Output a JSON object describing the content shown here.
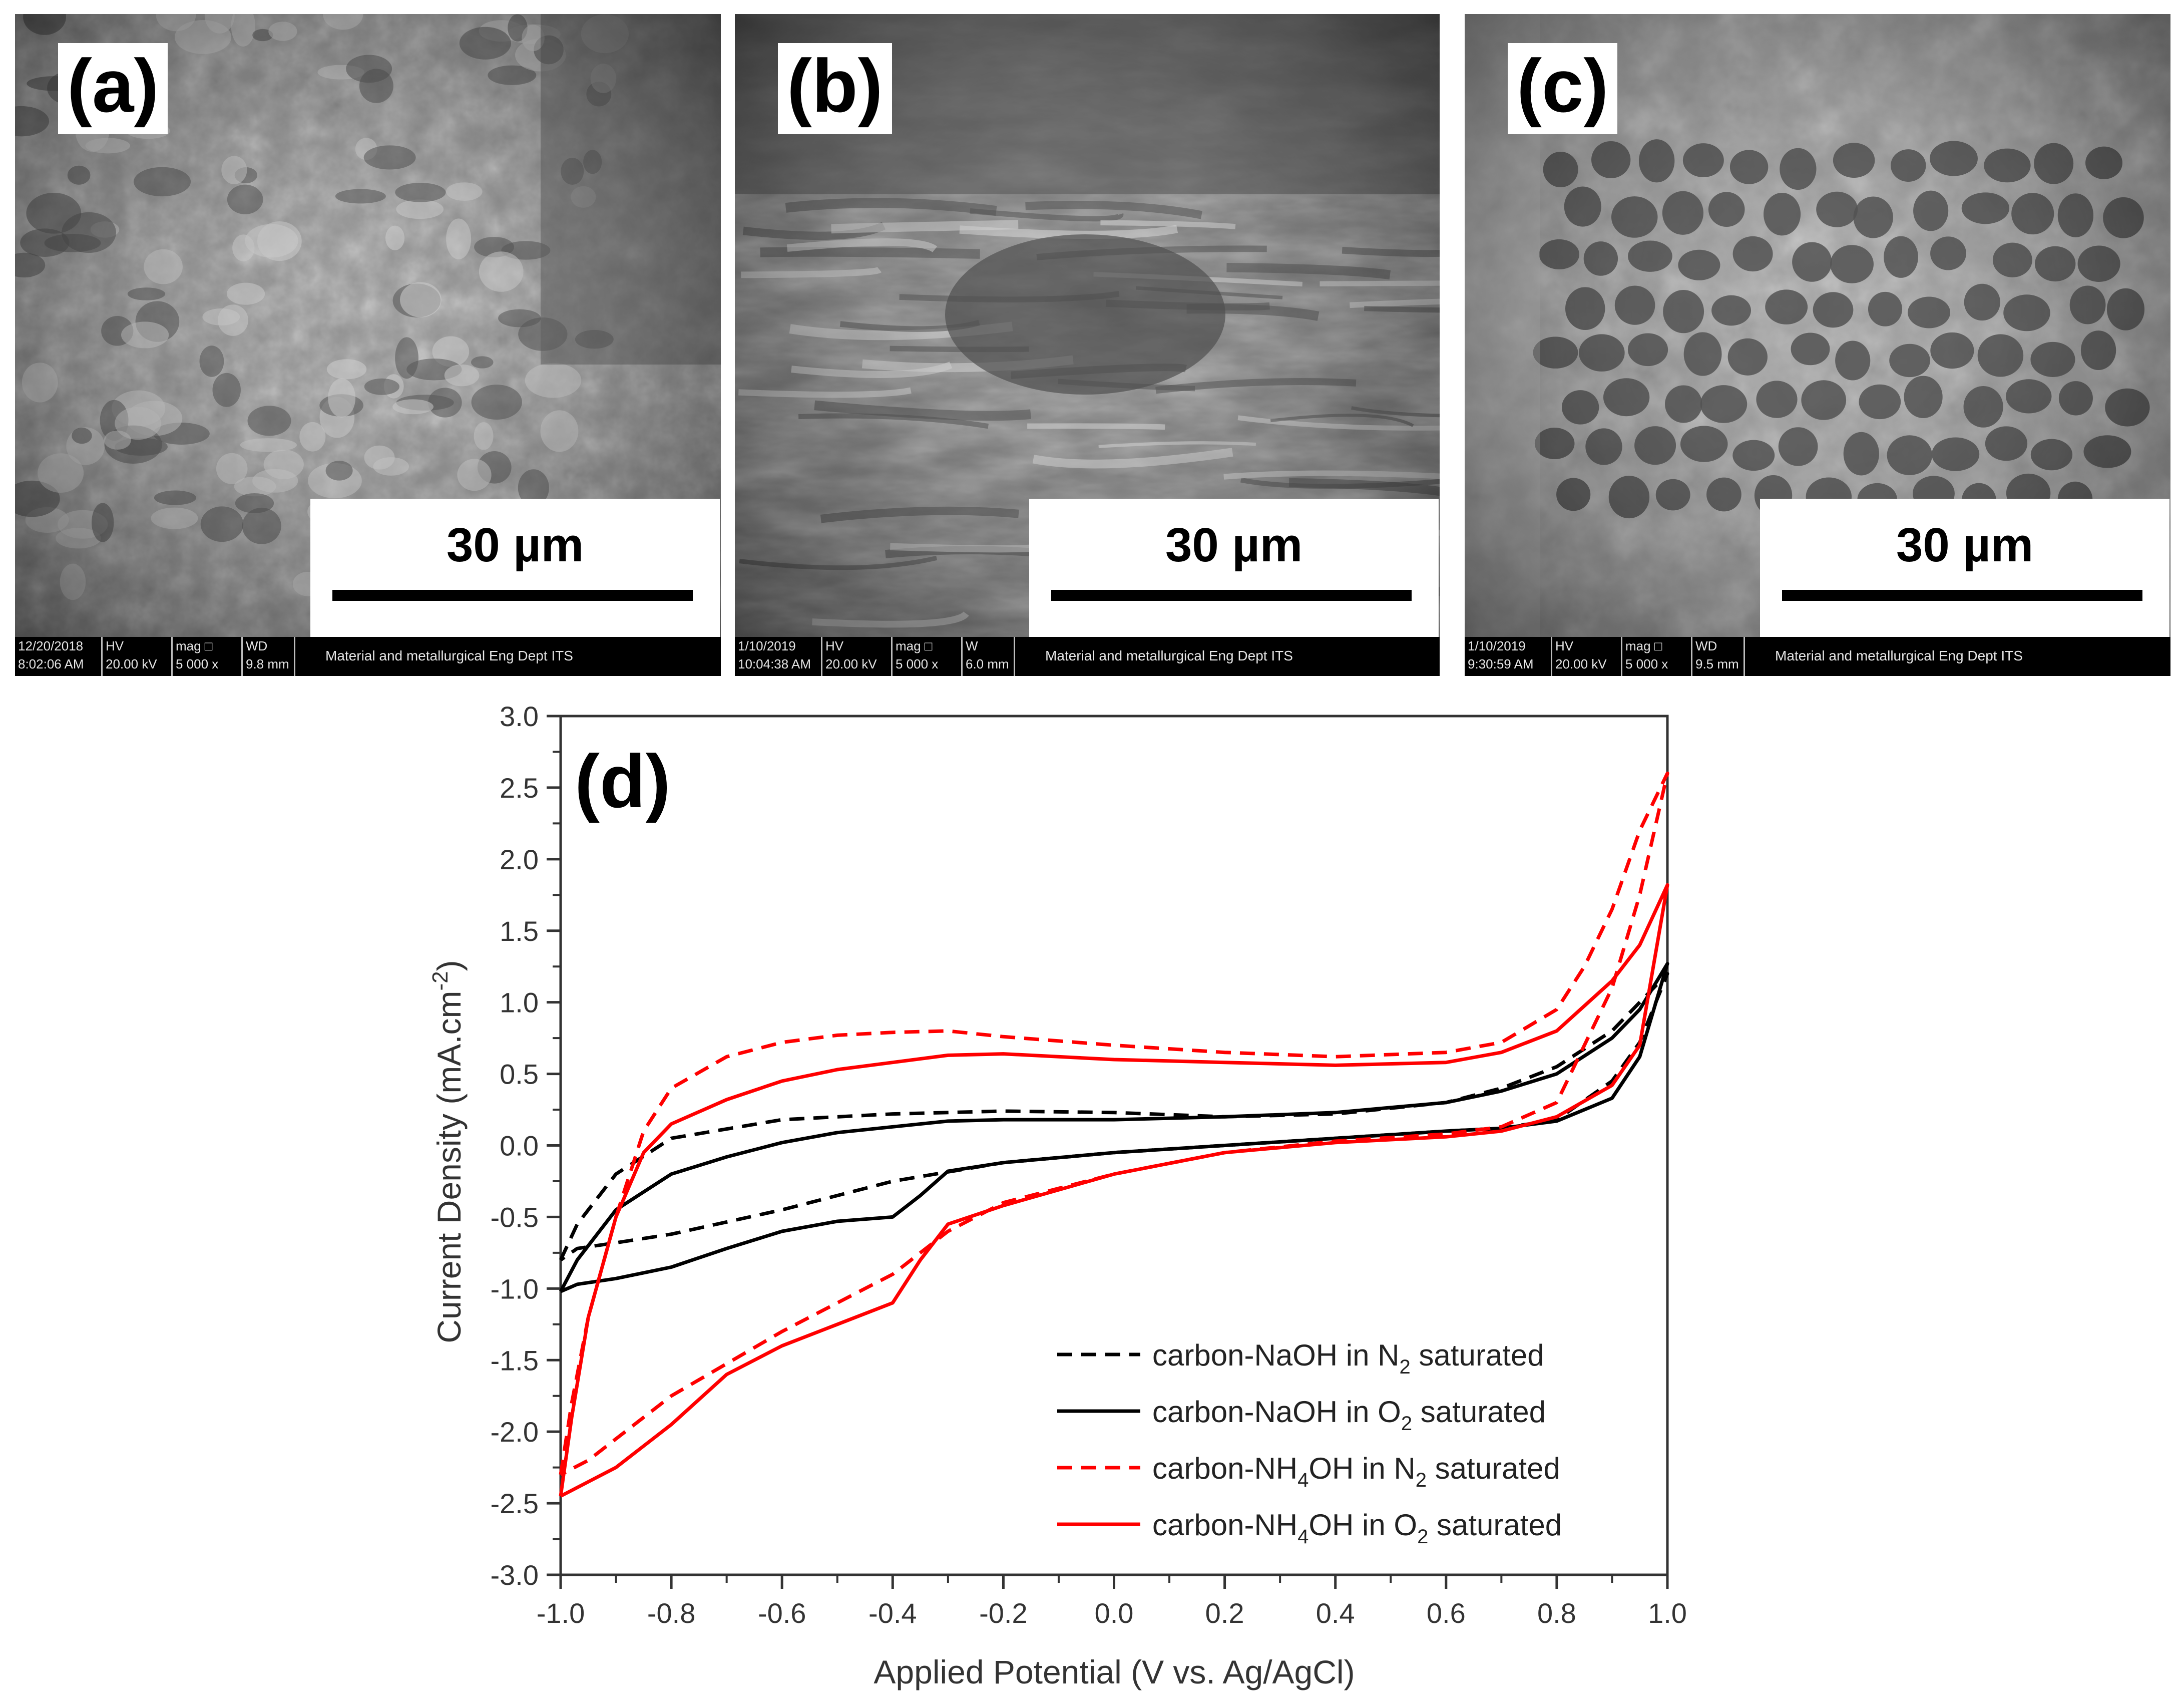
{
  "sem_panels": [
    {
      "label": "(a)",
      "scale_bar": "30 µm",
      "info": {
        "date": "12/20/2018",
        "time": "8:02:06 AM",
        "hv_label": "HV",
        "hv": "20.00 kV",
        "mag_label": "mag □",
        "mag": "5 000 x",
        "wd_label": "WD",
        "wd": "9.8 mm",
        "institution": "Material and metallurgical Eng Dept ITS"
      }
    },
    {
      "label": "(b)",
      "scale_bar": "30 µm",
      "info": {
        "date": "1/10/2019",
        "time": "10:04:38 AM",
        "hv_label": "HV",
        "hv": "20.00 kV",
        "mag_label": "mag □",
        "mag": "5 000 x",
        "wd_label": "W",
        "wd": "6.0 mm",
        "institution": "Material and metallurgical Eng Dept ITS"
      }
    },
    {
      "label": "(c)",
      "scale_bar": "30 µm",
      "info": {
        "date": "1/10/2019",
        "time": "9:30:59 AM",
        "hv_label": "HV",
        "hv": "20.00 kV",
        "mag_label": "mag □",
        "mag": "5 000 x",
        "wd_label": "WD",
        "wd": "9.5 mm",
        "institution": "Material and metallurgical Eng Dept ITS"
      }
    }
  ],
  "chart_data": {
    "type": "line",
    "panel_label": "(d)",
    "xlabel": "Applied Potential (V vs. Ag/AgCl)",
    "ylabel": {
      "main": "Current Density (mA.cm",
      "superscript": "-2",
      "close": ")"
    },
    "xlim": [
      -1.0,
      1.0
    ],
    "ylim": [
      -3.0,
      3.0
    ],
    "x_ticks": [
      "-1.0",
      "-0.8",
      "-0.6",
      "-0.4",
      "-0.2",
      "0.0",
      "0.2",
      "0.4",
      "0.6",
      "0.8",
      "1.0"
    ],
    "y_ticks": [
      "-3.0",
      "-2.5",
      "-2.0",
      "-1.5",
      "-1.0",
      "-0.5",
      "0.0",
      "0.5",
      "1.0",
      "1.5",
      "2.0",
      "2.5",
      "3.0"
    ],
    "grid": false,
    "legend_position": "bottom-right",
    "series": [
      {
        "name_parts": {
          "pre": "carbon-NaOH in N",
          "sub1": "2",
          "post": " saturated"
        },
        "color": "#000000",
        "dash": "dashed",
        "x": [
          -1.0,
          -0.97,
          -0.9,
          -0.8,
          -0.6,
          -0.4,
          -0.2,
          0.0,
          0.2,
          0.4,
          0.6,
          0.7,
          0.8,
          0.9,
          0.95,
          1.0,
          0.95,
          0.9,
          0.8,
          0.7,
          0.6,
          0.4,
          0.2,
          0.0,
          -0.2,
          -0.4,
          -0.6,
          -0.8,
          -0.9,
          -0.97,
          -1.0
        ],
        "y": [
          -0.8,
          -0.55,
          -0.2,
          0.05,
          0.18,
          0.22,
          0.24,
          0.23,
          0.2,
          0.22,
          0.3,
          0.4,
          0.55,
          0.8,
          1.0,
          1.2,
          0.72,
          0.45,
          0.18,
          0.12,
          0.1,
          0.05,
          0.0,
          -0.05,
          -0.12,
          -0.25,
          -0.45,
          -0.62,
          -0.68,
          -0.72,
          -0.8
        ]
      },
      {
        "name_parts": {
          "pre": "carbon-NaOH in O",
          "sub1": "2",
          "post": " saturated"
        },
        "color": "#000000",
        "dash": "solid",
        "x": [
          -1.0,
          -0.97,
          -0.9,
          -0.8,
          -0.7,
          -0.6,
          -0.5,
          -0.4,
          -0.3,
          -0.2,
          0.0,
          0.2,
          0.4,
          0.6,
          0.7,
          0.8,
          0.9,
          0.95,
          1.0,
          0.95,
          0.9,
          0.8,
          0.7,
          0.6,
          0.4,
          0.2,
          0.0,
          -0.2,
          -0.3,
          -0.35,
          -0.4,
          -0.5,
          -0.6,
          -0.7,
          -0.8,
          -0.9,
          -0.97,
          -1.0
        ],
        "y": [
          -1.02,
          -0.8,
          -0.45,
          -0.2,
          -0.08,
          0.02,
          0.09,
          0.13,
          0.17,
          0.18,
          0.18,
          0.2,
          0.23,
          0.3,
          0.38,
          0.5,
          0.75,
          0.95,
          1.27,
          0.62,
          0.33,
          0.17,
          0.12,
          0.1,
          0.05,
          0.0,
          -0.05,
          -0.12,
          -0.18,
          -0.35,
          -0.5,
          -0.53,
          -0.6,
          -0.72,
          -0.85,
          -0.93,
          -0.97,
          -1.02
        ]
      },
      {
        "name_parts": {
          "pre": "carbon-NH",
          "sub1": "4",
          "mid": "OH in N",
          "sub2": "2",
          "post": " saturated"
        },
        "color": "#ff0000",
        "dash": "dashed",
        "x": [
          -1.0,
          -0.98,
          -0.95,
          -0.9,
          -0.85,
          -0.8,
          -0.7,
          -0.6,
          -0.5,
          -0.4,
          -0.3,
          -0.2,
          0.0,
          0.2,
          0.4,
          0.6,
          0.7,
          0.8,
          0.85,
          0.9,
          0.95,
          1.0,
          0.95,
          0.9,
          0.8,
          0.7,
          0.6,
          0.4,
          0.2,
          0.0,
          -0.2,
          -0.3,
          -0.4,
          -0.6,
          -0.8,
          -0.9,
          -0.95,
          -1.0
        ],
        "y": [
          -2.3,
          -1.8,
          -1.2,
          -0.5,
          0.1,
          0.4,
          0.62,
          0.72,
          0.77,
          0.79,
          0.8,
          0.76,
          0.7,
          0.65,
          0.62,
          0.65,
          0.72,
          0.95,
          1.25,
          1.65,
          2.2,
          2.6,
          1.75,
          1.1,
          0.3,
          0.13,
          0.08,
          0.03,
          -0.05,
          -0.2,
          -0.4,
          -0.6,
          -0.9,
          -1.3,
          -1.75,
          -2.05,
          -2.2,
          -2.3
        ]
      },
      {
        "name_parts": {
          "pre": "carbon-NH",
          "sub1": "4",
          "mid": "OH in O",
          "sub2": "2",
          "post": " saturated"
        },
        "color": "#ff0000",
        "dash": "solid",
        "x": [
          -1.0,
          -0.98,
          -0.95,
          -0.9,
          -0.85,
          -0.8,
          -0.7,
          -0.6,
          -0.5,
          -0.4,
          -0.3,
          -0.2,
          0.0,
          0.2,
          0.4,
          0.6,
          0.7,
          0.8,
          0.9,
          0.95,
          1.0,
          0.95,
          0.9,
          0.8,
          0.7,
          0.6,
          0.4,
          0.2,
          0.0,
          -0.2,
          -0.3,
          -0.35,
          -0.4,
          -0.5,
          -0.6,
          -0.7,
          -0.8,
          -0.9,
          -0.95,
          -1.0
        ],
        "y": [
          -2.45,
          -1.9,
          -1.2,
          -0.5,
          -0.05,
          0.15,
          0.32,
          0.45,
          0.53,
          0.58,
          0.63,
          0.64,
          0.6,
          0.58,
          0.56,
          0.58,
          0.65,
          0.8,
          1.15,
          1.4,
          1.82,
          0.7,
          0.42,
          0.2,
          0.1,
          0.06,
          0.02,
          -0.05,
          -0.2,
          -0.42,
          -0.55,
          -0.8,
          -1.1,
          -1.25,
          -1.4,
          -1.6,
          -1.95,
          -2.25,
          -2.35,
          -2.45
        ]
      }
    ]
  }
}
